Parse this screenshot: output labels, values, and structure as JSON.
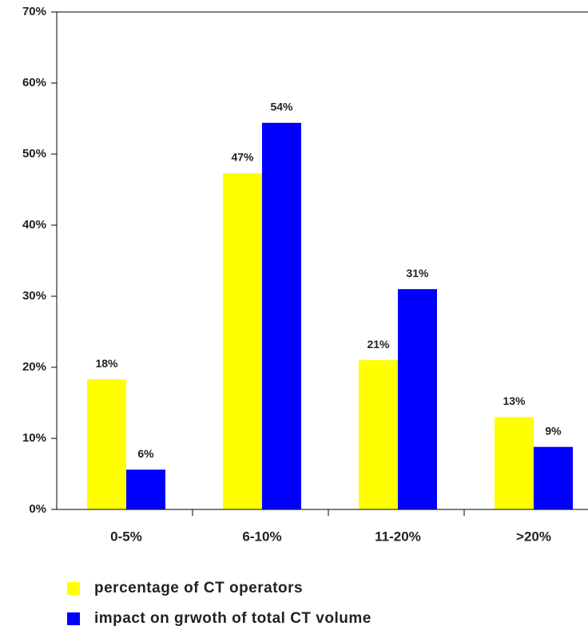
{
  "chart_data": {
    "type": "bar",
    "categories": [
      "0-5%",
      "6-10%",
      "11-20%",
      ">20%"
    ],
    "series": [
      {
        "name": "percentage of CT operators",
        "color": "#ffff00",
        "values": [
          18.3,
          47.3,
          21,
          13
        ],
        "value_labels": [
          "18%",
          "47%",
          "21%",
          "13%"
        ]
      },
      {
        "name": "impact on grwoth of total CT volume",
        "color": "#0000ff",
        "values": [
          5.6,
          54.4,
          31,
          8.8
        ],
        "value_labels": [
          "6%",
          "54%",
          "31%",
          "9%"
        ]
      }
    ],
    "ylim": [
      0,
      70
    ],
    "yticks": [
      {
        "value": 0,
        "label": "0%"
      },
      {
        "value": 10,
        "label": "10%"
      },
      {
        "value": 20,
        "label": "20%"
      },
      {
        "value": 30,
        "label": "30%"
      },
      {
        "value": 40,
        "label": "40%"
      },
      {
        "value": 50,
        "label": "50%"
      },
      {
        "value": 60,
        "label": "60%"
      },
      {
        "value": 70,
        "label": "70%"
      }
    ],
    "legend": "bottom"
  }
}
